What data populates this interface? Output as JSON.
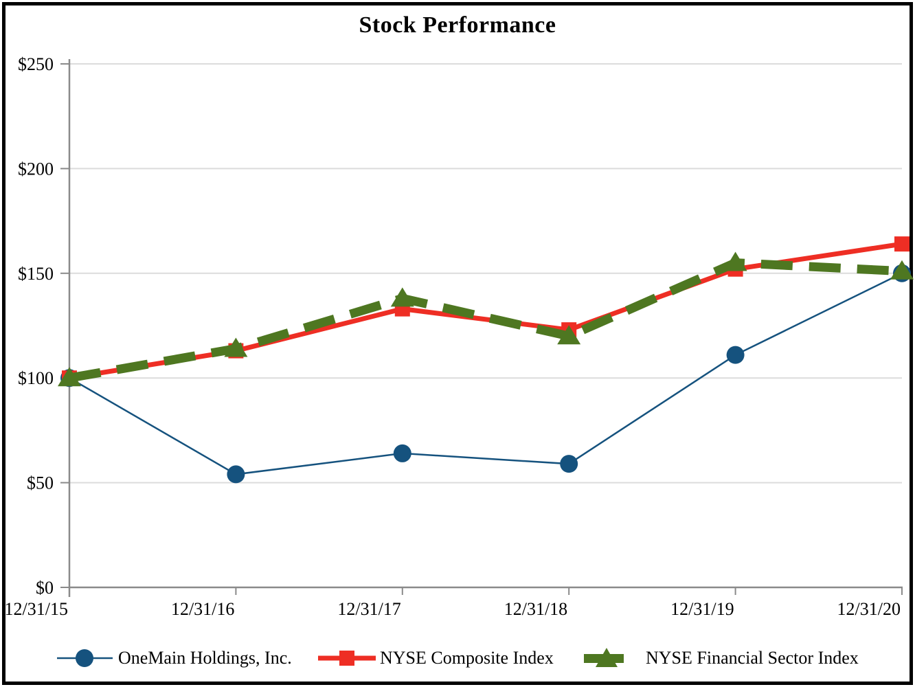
{
  "title": "Stock Performance",
  "chart_data": {
    "type": "line",
    "x": [
      "12/31/15",
      "12/31/16",
      "12/31/17",
      "12/31/18",
      "12/31/19",
      "12/31/20"
    ],
    "series": [
      {
        "name": "OneMain Holdings, Inc.",
        "values": [
          100,
          54,
          64,
          59,
          111,
          150
        ],
        "color": "#15527E",
        "marker": "circle",
        "line": "thin"
      },
      {
        "name": "NYSE Composite Index",
        "values": [
          100,
          113,
          133,
          123,
          152,
          164
        ],
        "color": "#EE2E24",
        "marker": "square",
        "line": "thick"
      },
      {
        "name": "NYSE Financial Sector Index",
        "values": [
          100,
          114,
          138,
          120,
          155,
          151
        ],
        "color": "#4E7721",
        "marker": "triangle",
        "line": "dashed"
      }
    ],
    "ylim": [
      0,
      250
    ],
    "ytick_step": 50,
    "ytick_labels": [
      "$0",
      "$50",
      "$100",
      "$150",
      "$200",
      "$250"
    ],
    "grid": "horizontal",
    "legend_position": "bottom",
    "axis_color": "#8a8a8a",
    "grid_color": "#dcdcdc"
  }
}
